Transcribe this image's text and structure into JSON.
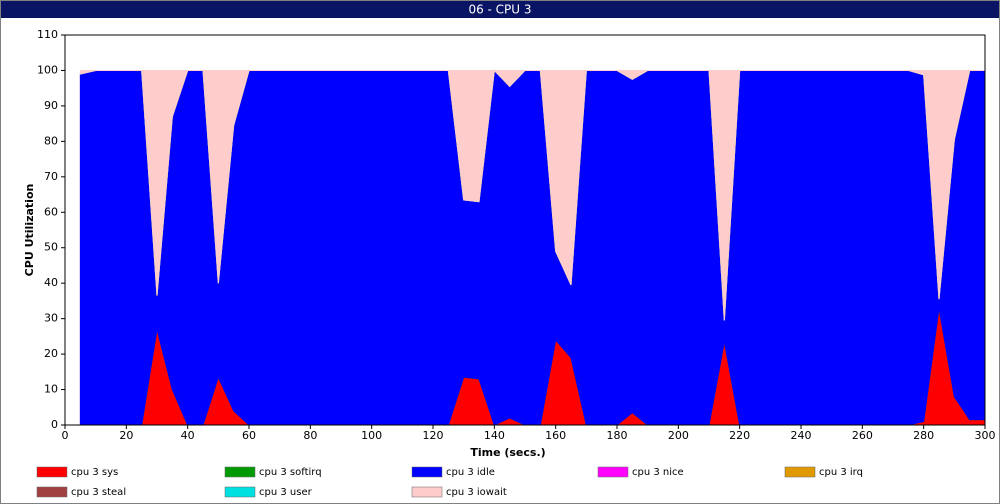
{
  "chart_data": {
    "type": "stacked-area",
    "title": "06 - CPU 3",
    "x_label": "Time (secs.)",
    "y_label": "CPU Utilization",
    "x": [
      5,
      10,
      15,
      20,
      25,
      30,
      35,
      40,
      45,
      50,
      55,
      60,
      65,
      70,
      75,
      80,
      85,
      90,
      95,
      100,
      105,
      110,
      115,
      120,
      125,
      130,
      135,
      140,
      145,
      150,
      155,
      160,
      165,
      170,
      175,
      180,
      185,
      190,
      195,
      200,
      205,
      210,
      215,
      220,
      225,
      230,
      235,
      240,
      245,
      250,
      255,
      260,
      265,
      270,
      275,
      280,
      285,
      290,
      295,
      300
    ],
    "xlim": [
      0,
      300
    ],
    "xticks": [
      0,
      20,
      40,
      60,
      80,
      100,
      120,
      140,
      160,
      180,
      200,
      220,
      240,
      260,
      280,
      300
    ],
    "ylim": [
      0,
      110
    ],
    "yticks": [
      0,
      10,
      20,
      30,
      40,
      50,
      60,
      70,
      80,
      90,
      100,
      110
    ],
    "series": [
      {
        "name": "cpu 3 sys",
        "color": "#ff0000",
        "values": [
          0,
          0,
          0,
          0,
          0,
          27,
          10,
          0,
          0,
          13.5,
          4,
          0,
          0,
          0,
          0,
          0,
          0,
          0,
          0,
          0,
          0,
          0,
          0,
          0,
          0,
          13.5,
          13,
          0,
          2,
          0,
          0,
          24,
          19,
          0,
          0,
          0,
          3.5,
          0,
          0,
          0,
          0,
          0,
          23.5,
          0,
          0,
          0,
          0,
          0,
          0,
          0,
          0,
          0,
          0,
          0,
          0,
          1,
          33,
          8,
          1.5,
          1.5
        ]
      },
      {
        "name": "cpu 3 softirq",
        "color": "#009900",
        "values": [
          0,
          0,
          0,
          0,
          0,
          0,
          0,
          0,
          0,
          0,
          0,
          0,
          0,
          0,
          0,
          0,
          0,
          0,
          0,
          0,
          0,
          0,
          0,
          0,
          0,
          0,
          0,
          0,
          0,
          0,
          0,
          0,
          0,
          0,
          0,
          0,
          0,
          0,
          0,
          0,
          0,
          0,
          0,
          0,
          0,
          0,
          0,
          0,
          0,
          0,
          0,
          0,
          0,
          0,
          0,
          0,
          0,
          0,
          0,
          0
        ]
      },
      {
        "name": "cpu 3 idle",
        "color": "#0000ff",
        "values": [
          99,
          100,
          100,
          100,
          100,
          9.5,
          77,
          100,
          100,
          26.5,
          80.5,
          100,
          100,
          100,
          100,
          100,
          100,
          100,
          100,
          100,
          100,
          100,
          100,
          100,
          100,
          50,
          50,
          100,
          93.5,
          100,
          100,
          25,
          20.5,
          100,
          100,
          100,
          94,
          100,
          100,
          100,
          100,
          100,
          6,
          100,
          100,
          100,
          100,
          100,
          100,
          100,
          100,
          100,
          100,
          100,
          100,
          97.8,
          2.5,
          72.5,
          98.5,
          98.5
        ]
      },
      {
        "name": "cpu 3 nice",
        "color": "#ff00ff",
        "values": [
          0,
          0,
          0,
          0,
          0,
          0,
          0,
          0,
          0,
          0,
          0,
          0,
          0,
          0,
          0,
          0,
          0,
          0,
          0,
          0,
          0,
          0,
          0,
          0,
          0,
          0,
          0,
          0,
          0,
          0,
          0,
          0,
          0,
          0,
          0,
          0,
          0,
          0,
          0,
          0,
          0,
          0,
          0,
          0,
          0,
          0,
          0,
          0,
          0,
          0,
          0,
          0,
          0,
          0,
          0,
          0,
          0,
          0,
          0,
          0
        ]
      },
      {
        "name": "cpu 3 irq",
        "color": "#e09a00",
        "values": [
          0,
          0,
          0,
          0,
          0,
          0,
          0,
          0,
          0,
          0,
          0,
          0,
          0,
          0,
          0,
          0,
          0,
          0,
          0,
          0,
          0,
          0,
          0,
          0,
          0,
          0,
          0,
          0,
          0,
          0,
          0,
          0,
          0,
          0,
          0,
          0,
          0,
          0,
          0,
          0,
          0,
          0,
          0,
          0,
          0,
          0,
          0,
          0,
          0,
          0,
          0,
          0,
          0,
          0,
          0,
          0,
          0,
          0,
          0,
          0
        ]
      },
      {
        "name": "cpu 3 steal",
        "color": "#a04040",
        "values": [
          0,
          0,
          0,
          0,
          0,
          0,
          0,
          0,
          0,
          0,
          0,
          0,
          0,
          0,
          0,
          0,
          0,
          0,
          0,
          0,
          0,
          0,
          0,
          0,
          0,
          0,
          0,
          0,
          0,
          0,
          0,
          0,
          0,
          0,
          0,
          0,
          0,
          0,
          0,
          0,
          0,
          0,
          0,
          0,
          0,
          0,
          0,
          0,
          0,
          0,
          0,
          0,
          0,
          0,
          0,
          0,
          0,
          0,
          0,
          0
        ]
      },
      {
        "name": "cpu 3 user",
        "color": "#00e0e0",
        "values": [
          0,
          0,
          0,
          0,
          0,
          0,
          0,
          0,
          0,
          0,
          0,
          0,
          0,
          0,
          0,
          0,
          0,
          0,
          0,
          0,
          0,
          0,
          0,
          0,
          0,
          0,
          0,
          0,
          0,
          0,
          0,
          0,
          0,
          0,
          0,
          0,
          0,
          0,
          0,
          0,
          0,
          0,
          0,
          0,
          0,
          0,
          0,
          0,
          0,
          0,
          0,
          0,
          0,
          0,
          0,
          0,
          0,
          0,
          0,
          0
        ]
      },
      {
        "name": "cpu 3 iowait",
        "color": "#ffcccc",
        "values": [
          1,
          0,
          0,
          0,
          0,
          63.5,
          13,
          0,
          0,
          60,
          15.5,
          0,
          0,
          0,
          0,
          0,
          0,
          0,
          0,
          0,
          0,
          0,
          0,
          0,
          0,
          36.5,
          37,
          0,
          4.5,
          0,
          0,
          51,
          60.5,
          0,
          0,
          0,
          2.5,
          0,
          0,
          0,
          0,
          0,
          70.5,
          0,
          0,
          0,
          0,
          0,
          0,
          0,
          0,
          0,
          0,
          0,
          0,
          1.2,
          64.5,
          19.5,
          0,
          0
        ]
      }
    ]
  }
}
